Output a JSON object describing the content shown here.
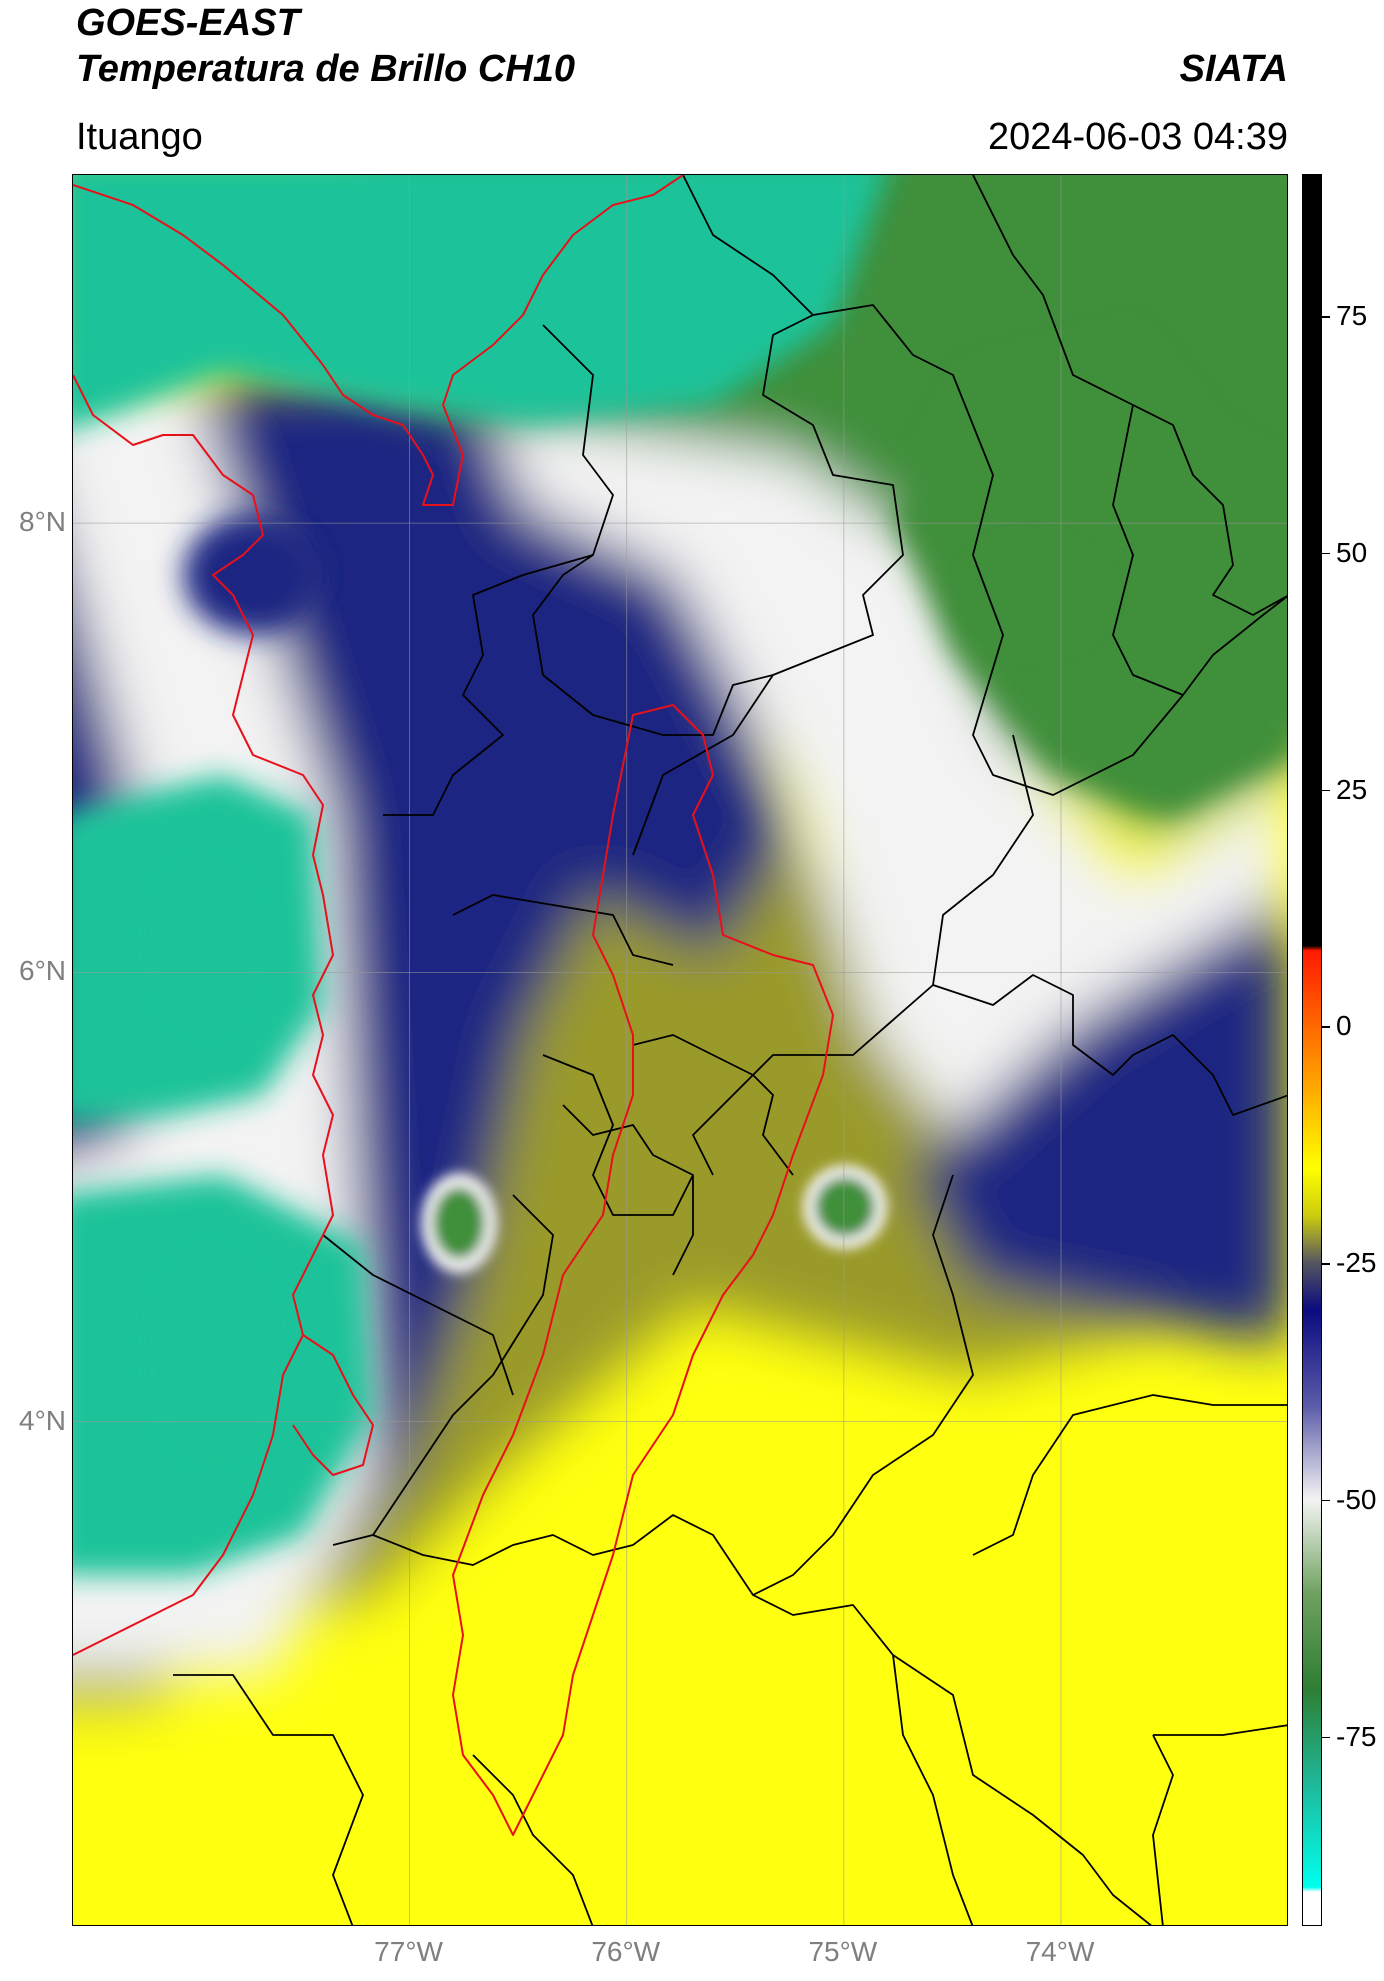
{
  "header": {
    "satellite": "GOES-EAST",
    "product": "Temperatura de Brillo CH10",
    "brand": "SIATA",
    "location": "Ituango",
    "datetime": "2024-06-03 04:39"
  },
  "map": {
    "lon_range": [
      -78.55,
      -72.95
    ],
    "lat_range": [
      1.75,
      9.55
    ],
    "lat_ticks": [
      "8°N",
      "6°N",
      "4°N"
    ],
    "lon_ticks": [
      "77°W",
      "76°W",
      "75°W",
      "74°W"
    ],
    "lat_tick_values": [
      8,
      6,
      4
    ],
    "lon_tick_values": [
      -77,
      -76,
      -75,
      -74
    ],
    "gridlines": true,
    "colors": {
      "ocean_cold": "#1fc39a",
      "cloud_green": "#3f8f3a",
      "white": "#f3f3f3",
      "navy": "#1c2582",
      "olive": "#9a9a2c",
      "yellow": "#ffff10",
      "boundary_red": "#e8101a",
      "boundary_black": "#000000"
    }
  },
  "colorbar": {
    "min": -95,
    "max": 90,
    "ticks": [
      {
        "value": 75,
        "label": "75"
      },
      {
        "value": 50,
        "label": "50"
      },
      {
        "value": 25,
        "label": "25"
      },
      {
        "value": 0,
        "label": "0"
      },
      {
        "value": -25,
        "label": "-25"
      },
      {
        "value": -50,
        "label": "-50"
      },
      {
        "value": -75,
        "label": "-75"
      }
    ]
  }
}
